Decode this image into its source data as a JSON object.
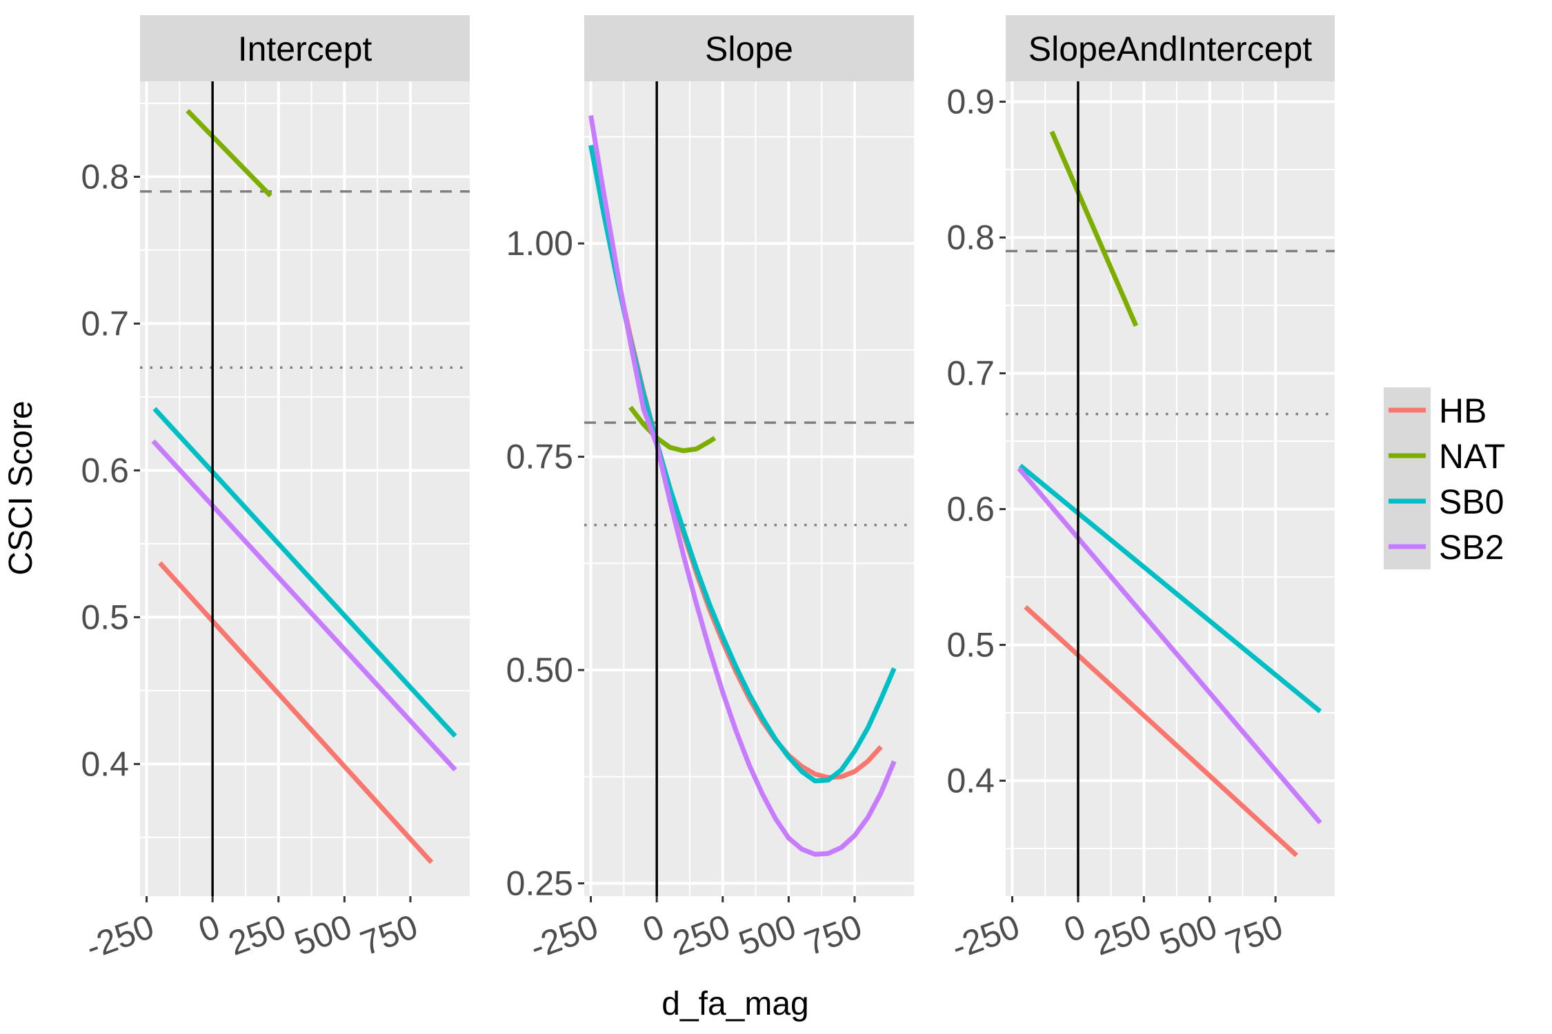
{
  "chart_data": {
    "type": "line",
    "ylabel": "CSCI Score",
    "xlabel": "d_fa_mag",
    "x_ticks": [
      -250,
      0,
      250,
      500,
      750
    ],
    "x_tick_labels": [
      "-250",
      "0",
      "250",
      "500",
      "750"
    ],
    "reference_lines": {
      "vertical_x": 0,
      "dashed_y": 0.79,
      "dotted_y": 0.67
    },
    "legend": {
      "placement": "right",
      "entries": [
        {
          "name": "HB",
          "color": "#F8766D"
        },
        {
          "name": "NAT",
          "color": "#7CAE00"
        },
        {
          "name": "SB0",
          "color": "#00BFC4"
        },
        {
          "name": "SB2",
          "color": "#C77CFF"
        }
      ]
    },
    "panels": [
      {
        "title": "Intercept",
        "xlim": [
          -275,
          975
        ],
        "ylim": [
          0.31,
          0.865
        ],
        "y_ticks": [
          0.4,
          0.5,
          0.6,
          0.7,
          0.8
        ],
        "y_tick_labels": [
          "0.4",
          "0.5",
          "0.6",
          "0.7",
          "0.8"
        ],
        "series": [
          {
            "name": "HB",
            "x": [
              -200,
              830
            ],
            "y": [
              0.537,
              0.333
            ]
          },
          {
            "name": "NAT",
            "x": [
              -95,
              220
            ],
            "y": [
              0.845,
              0.787
            ]
          },
          {
            "name": "SB0",
            "x": [
              -220,
              920
            ],
            "y": [
              0.642,
              0.419
            ]
          },
          {
            "name": "SB2",
            "x": [
              -225,
              920
            ],
            "y": [
              0.62,
              0.396
            ]
          }
        ]
      },
      {
        "title": "Slope",
        "xlim": [
          -275,
          975
        ],
        "ylim": [
          0.235,
          1.19
        ],
        "y_ticks": [
          0.25,
          0.5,
          0.75,
          1.0
        ],
        "y_tick_labels": [
          "0.25",
          "0.50",
          "0.75",
          "1.00"
        ],
        "series": [
          {
            "name": "HB",
            "x": [
              -250,
              -200,
              -150,
              -100,
              -50,
              0,
              50,
              100,
              150,
              200,
              250,
              300,
              350,
              400,
              450,
              500,
              550,
              600,
              650,
              700,
              750,
              800,
              850
            ],
            "y": [
              1.115,
              1.037,
              0.962,
              0.891,
              0.826,
              0.767,
              0.712,
              0.661,
              0.614,
              0.571,
              0.533,
              0.498,
              0.467,
              0.44,
              0.418,
              0.4,
              0.387,
              0.378,
              0.374,
              0.375,
              0.381,
              0.393,
              0.41
            ]
          },
          {
            "name": "NAT",
            "x": [
              -100,
              -50,
              0,
              50,
              100,
              150,
              200,
              220
            ],
            "y": [
              0.808,
              0.788,
              0.772,
              0.761,
              0.757,
              0.759,
              0.768,
              0.772
            ]
          },
          {
            "name": "SB0",
            "x": [
              -250,
              -200,
              -150,
              -100,
              -50,
              0,
              50,
              100,
              150,
              200,
              250,
              300,
              350,
              400,
              450,
              500,
              550,
              600,
              650,
              700,
              750,
              800,
              850,
              900
            ],
            "y": [
              1.115,
              1.033,
              0.957,
              0.887,
              0.823,
              0.766,
              0.713,
              0.665,
              0.619,
              0.577,
              0.539,
              0.504,
              0.472,
              0.444,
              0.419,
              0.398,
              0.381,
              0.37,
              0.371,
              0.383,
              0.405,
              0.432,
              0.466,
              0.502
            ]
          },
          {
            "name": "SB2",
            "x": [
              -250,
              -200,
              -150,
              -100,
              -50,
              0,
              50,
              100,
              150,
              200,
              250,
              300,
              350,
              400,
              450,
              500,
              550,
              600,
              650,
              700,
              750,
              800,
              850,
              900
            ],
            "y": [
              1.15,
              1.057,
              0.968,
              0.884,
              0.806,
              0.764,
              0.698,
              0.636,
              0.578,
              0.524,
              0.474,
              0.429,
              0.389,
              0.355,
              0.326,
              0.303,
              0.29,
              0.284,
              0.285,
              0.292,
              0.306,
              0.327,
              0.356,
              0.393
            ]
          }
        ]
      },
      {
        "title": "SlopeAndIntercept",
        "xlim": [
          -275,
          975
        ],
        "ylim": [
          0.315,
          0.915
        ],
        "y_ticks": [
          0.4,
          0.5,
          0.6,
          0.7,
          0.8,
          0.9
        ],
        "y_tick_labels": [
          "0.4",
          "0.5",
          "0.6",
          "0.7",
          "0.8",
          "0.9"
        ],
        "series": [
          {
            "name": "HB",
            "x": [
              -200,
              830
            ],
            "y": [
              0.528,
              0.345
            ]
          },
          {
            "name": "NAT",
            "x": [
              -100,
              220
            ],
            "y": [
              0.878,
              0.735
            ]
          },
          {
            "name": "SB0",
            "x": [
              -220,
              920
            ],
            "y": [
              0.632,
              0.451
            ]
          },
          {
            "name": "SB2",
            "x": [
              -225,
              920
            ],
            "y": [
              0.63,
              0.369
            ]
          }
        ]
      }
    ]
  }
}
